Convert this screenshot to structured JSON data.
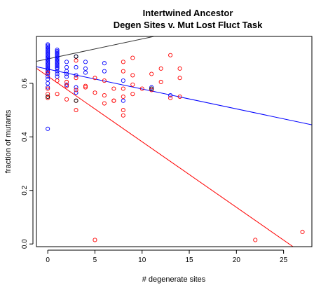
{
  "chart_data": {
    "type": "scatter",
    "title": "Intertwined Ancestor",
    "subtitle": "Degen Sites v. Mut Lost Fluct Task",
    "xlabel": "# degenerate sites",
    "ylabel": "fraction of mutants",
    "xlim": [
      -1.2,
      28
    ],
    "ylim": [
      -0.01,
      0.775
    ],
    "xticks": [
      0,
      5,
      10,
      15,
      20,
      25
    ],
    "yticks": [
      0.0,
      0.2,
      0.4,
      0.6
    ],
    "colors": {
      "black": "#000000",
      "blue": "#0000ff",
      "red": "#ff0000",
      "line_dark": "#333333"
    },
    "series": [
      {
        "color": "#0000ff",
        "points": [
          [
            0,
            0.745
          ],
          [
            0,
            0.74
          ],
          [
            0,
            0.735
          ],
          [
            0,
            0.73
          ],
          [
            0,
            0.725
          ],
          [
            0,
            0.72
          ],
          [
            0,
            0.715
          ],
          [
            0,
            0.71
          ],
          [
            0,
            0.705
          ],
          [
            0,
            0.7
          ],
          [
            0,
            0.695
          ],
          [
            0,
            0.69
          ],
          [
            0,
            0.685
          ],
          [
            0,
            0.68
          ],
          [
            0,
            0.675
          ],
          [
            0,
            0.67
          ],
          [
            0,
            0.665
          ],
          [
            0,
            0.66
          ],
          [
            0,
            0.655
          ],
          [
            0,
            0.65
          ],
          [
            0,
            0.645
          ],
          [
            0,
            0.64
          ],
          [
            0,
            0.635
          ],
          [
            0,
            0.625
          ],
          [
            0,
            0.615
          ],
          [
            0,
            0.6
          ],
          [
            0,
            0.585
          ],
          [
            0,
            0.43
          ],
          [
            1,
            0.725
          ],
          [
            1,
            0.72
          ],
          [
            1,
            0.715
          ],
          [
            1,
            0.71
          ],
          [
            1,
            0.705
          ],
          [
            1,
            0.7
          ],
          [
            1,
            0.695
          ],
          [
            1,
            0.69
          ],
          [
            1,
            0.685
          ],
          [
            1,
            0.68
          ],
          [
            1,
            0.675
          ],
          [
            1,
            0.67
          ],
          [
            1,
            0.665
          ],
          [
            1,
            0.66
          ],
          [
            1,
            0.655
          ],
          [
            1,
            0.645
          ],
          [
            1,
            0.635
          ],
          [
            1,
            0.625
          ],
          [
            2,
            0.68
          ],
          [
            2,
            0.66
          ],
          [
            2,
            0.645
          ],
          [
            2,
            0.635
          ],
          [
            2,
            0.625
          ],
          [
            2,
            0.595
          ],
          [
            2,
            0.59
          ],
          [
            3,
            0.7
          ],
          [
            3,
            0.66
          ],
          [
            3,
            0.63
          ],
          [
            3,
            0.585
          ],
          [
            3,
            0.565
          ],
          [
            4,
            0.68
          ],
          [
            4,
            0.655
          ],
          [
            4,
            0.64
          ],
          [
            6,
            0.675
          ],
          [
            6,
            0.645
          ],
          [
            8,
            0.61
          ],
          [
            8,
            0.535
          ],
          [
            11,
            0.585
          ],
          [
            13,
            0.555
          ]
        ]
      },
      {
        "color": "#ff0000",
        "points": [
          [
            0,
            0.56
          ],
          [
            0,
            0.545
          ],
          [
            0,
            0.58
          ],
          [
            0,
            0.64
          ],
          [
            1,
            0.61
          ],
          [
            1,
            0.56
          ],
          [
            2,
            0.59
          ],
          [
            2,
            0.605
          ],
          [
            2,
            0.54
          ],
          [
            3,
            0.685
          ],
          [
            3,
            0.62
          ],
          [
            3,
            0.575
          ],
          [
            3,
            0.535
          ],
          [
            3,
            0.5
          ],
          [
            4,
            0.585
          ],
          [
            4,
            0.59
          ],
          [
            5,
            0.565
          ],
          [
            5,
            0.62
          ],
          [
            5,
            0.015
          ],
          [
            6,
            0.555
          ],
          [
            6,
            0.525
          ],
          [
            6,
            0.61
          ],
          [
            7,
            0.58
          ],
          [
            7,
            0.535
          ],
          [
            7,
            0.535
          ],
          [
            8,
            0.68
          ],
          [
            8,
            0.645
          ],
          [
            8,
            0.58
          ],
          [
            8,
            0.55
          ],
          [
            8,
            0.5
          ],
          [
            8,
            0.48
          ],
          [
            9,
            0.695
          ],
          [
            9,
            0.63
          ],
          [
            9,
            0.595
          ],
          [
            9,
            0.56
          ],
          [
            10,
            0.58
          ],
          [
            11,
            0.635
          ],
          [
            11,
            0.575
          ],
          [
            12,
            0.655
          ],
          [
            12,
            0.605
          ],
          [
            13,
            0.705
          ],
          [
            13,
            0.545
          ],
          [
            14,
            0.655
          ],
          [
            14,
            0.62
          ],
          [
            14,
            0.55
          ],
          [
            22,
            0.015
          ],
          [
            27,
            0.045
          ]
        ]
      },
      {
        "color": "#000000",
        "points": [
          [
            0,
            0.55
          ],
          [
            3,
            0.7
          ],
          [
            3,
            0.535
          ],
          [
            11,
            0.58
          ]
        ]
      }
    ],
    "fit_lines": [
      {
        "color": "#333333",
        "x1": -1.2,
        "y1": 0.682,
        "x2": 28,
        "y2": 0.9
      },
      {
        "color": "#0000ff",
        "x1": -1.2,
        "y1": 0.662,
        "x2": 28,
        "y2": 0.445
      },
      {
        "color": "#ff0000",
        "x1": -1.2,
        "y1": 0.656,
        "x2": 26,
        "y2": -0.01
      }
    ]
  }
}
